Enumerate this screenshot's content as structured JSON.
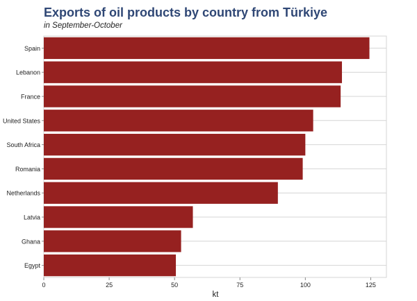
{
  "title": "Exports of oil products by country from Türkiye",
  "subtitle": "in September-October",
  "colors": {
    "bar": "#962120",
    "title": "#2f4775",
    "grid": "#d4d4d4",
    "axis": "#8a8a8a"
  },
  "chart_data": {
    "type": "bar",
    "orientation": "horizontal",
    "categories": [
      "Spain",
      "Lebanon",
      "France",
      "United States",
      "South Africa",
      "Romania",
      "Netherlands",
      "Latvia",
      "Ghana",
      "Egypt"
    ],
    "values": [
      124.5,
      114,
      113.5,
      103,
      100,
      99,
      89.5,
      57,
      52.5,
      50.5
    ],
    "xlabel": "kt",
    "ylabel": "",
    "xlim": [
      0,
      131
    ],
    "xticks": [
      0,
      25,
      50,
      75,
      100,
      125
    ],
    "grid": true,
    "legend": "none"
  }
}
